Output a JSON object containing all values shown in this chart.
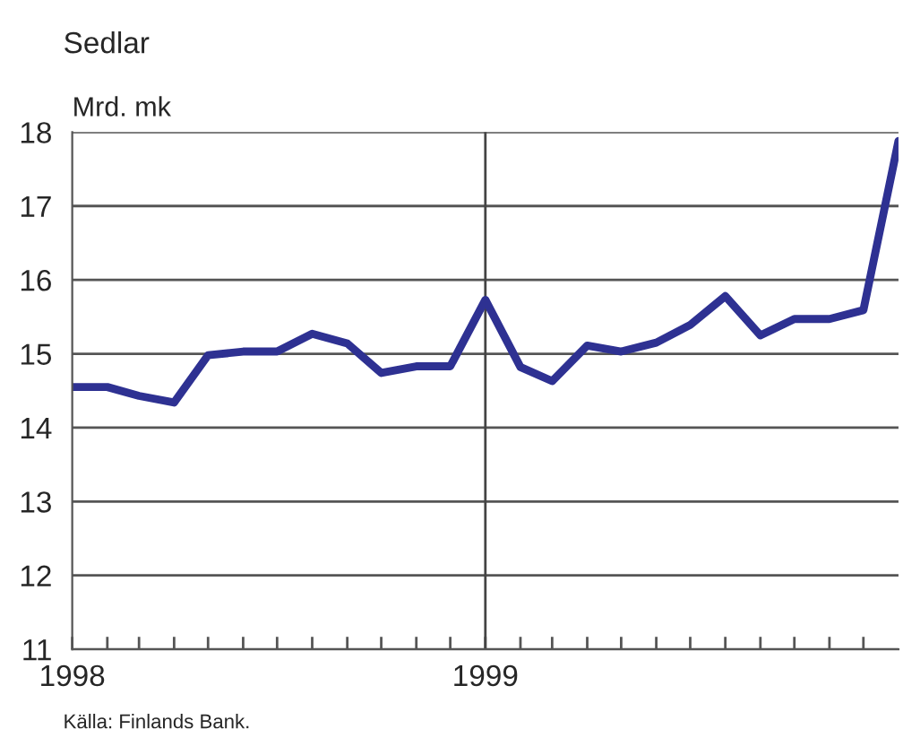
{
  "chart_data": {
    "type": "line",
    "title": "Sedlar",
    "ylabel": "Mrd. mk",
    "annotations": [
      "Källa: Finlands Bank."
    ],
    "x": [
      "1998-01",
      "1998-02",
      "1998-03",
      "1998-04",
      "1998-05",
      "1998-06",
      "1998-07",
      "1998-08",
      "1998-09",
      "1998-10",
      "1998-11",
      "1998-12",
      "1999-01",
      "1999-02",
      "1999-03",
      "1999-04",
      "1999-05",
      "1999-06",
      "1999-07",
      "1999-08",
      "1999-09",
      "1999-10",
      "1999-11",
      "1999-12",
      "2000-01"
    ],
    "series": [
      {
        "color": "#2e3192",
        "values": [
          14.55,
          14.55,
          14.43,
          14.34,
          14.98,
          15.03,
          15.03,
          15.27,
          15.14,
          14.74,
          14.83,
          14.83,
          15.73,
          14.82,
          14.63,
          15.11,
          15.03,
          15.15,
          15.39,
          15.78,
          15.25,
          15.47,
          15.47,
          15.59,
          17.88
        ]
      }
    ],
    "xlim": [
      "1998-01",
      "2000-01"
    ],
    "xticks": [
      {
        "value": "1998-01",
        "label": "1998"
      },
      {
        "value": "1998-02",
        "label": null
      },
      {
        "value": "1998-03",
        "label": null
      },
      {
        "value": "1998-04",
        "label": null
      },
      {
        "value": "1998-05",
        "label": null
      },
      {
        "value": "1998-06",
        "label": null
      },
      {
        "value": "1998-07",
        "label": null
      },
      {
        "value": "1998-08",
        "label": null
      },
      {
        "value": "1998-09",
        "label": null
      },
      {
        "value": "1998-10",
        "label": null
      },
      {
        "value": "1998-11",
        "label": null
      },
      {
        "value": "1998-12",
        "label": null
      },
      {
        "value": "1999-01",
        "label": "1999"
      },
      {
        "value": "1999-02",
        "label": null
      },
      {
        "value": "1999-03",
        "label": null
      },
      {
        "value": "1999-04",
        "label": null
      },
      {
        "value": "1999-05",
        "label": null
      },
      {
        "value": "1999-06",
        "label": null
      },
      {
        "value": "1999-07",
        "label": null
      },
      {
        "value": "1999-08",
        "label": null
      },
      {
        "value": "1999-09",
        "label": null
      },
      {
        "value": "1999-10",
        "label": null
      },
      {
        "value": "1999-11",
        "label": null
      },
      {
        "value": "1999-12",
        "label": null
      }
    ],
    "ylim": [
      11,
      18
    ],
    "yticks": [
      11,
      12,
      13,
      14,
      15,
      16,
      17,
      18
    ],
    "ref_lines": [
      {
        "axis": "x",
        "value": "1999-01",
        "color": "#444444"
      }
    ],
    "grid": "y",
    "marker": "none",
    "line_style": "solid"
  }
}
